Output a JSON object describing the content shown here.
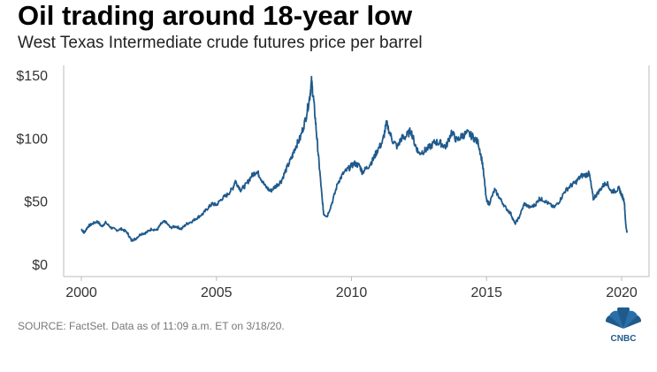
{
  "header": {
    "title": "Oil trading around 18-year low",
    "subtitle": "West Texas Intermediate crude futures price per barrel"
  },
  "footer": {
    "source": "SOURCE: FactSet. Data as of 11:09 a.m. ET on 3/18/20.",
    "logo_text": "CNBC"
  },
  "colors": {
    "line": "#1f5a8c",
    "axis": "#bbbbbb",
    "text": "#333333"
  },
  "chart_data": {
    "type": "line",
    "title": "Oil trading around 18-year low",
    "subtitle": "West Texas Intermediate crude futures price per barrel",
    "xlabel": "",
    "ylabel": "",
    "xlim": [
      2000,
      2020.25
    ],
    "ylim": [
      0,
      150
    ],
    "grid": false,
    "x_ticks": [
      2000,
      2005,
      2010,
      2015,
      2020
    ],
    "x_tick_labels": [
      "2000",
      "2005",
      "2010",
      "2015",
      "2020"
    ],
    "y_ticks": [
      0,
      50,
      100,
      150
    ],
    "y_tick_labels": [
      "$0",
      "$50",
      "$100",
      "$150"
    ],
    "series": [
      {
        "x": [
          2000.0,
          2000.1,
          2000.25,
          2000.4,
          2000.6,
          2000.75,
          2000.9,
          2001.1,
          2001.3,
          2001.5,
          2001.7,
          2001.85,
          2002.0,
          2002.2,
          2002.4,
          2002.6,
          2002.8,
          2002.95,
          2003.1,
          2003.3,
          2003.5,
          2003.7,
          2003.9,
          2004.1,
          2004.3,
          2004.5,
          2004.7,
          2004.85,
          2005.0,
          2005.2,
          2005.4,
          2005.6,
          2005.7,
          2005.9,
          2006.1,
          2006.3,
          2006.5,
          2006.6,
          2006.8,
          2007.0,
          2007.2,
          2007.4,
          2007.6,
          2007.8,
          2007.9,
          2008.1,
          2008.3,
          2008.45,
          2008.52,
          2008.6,
          2008.7,
          2008.8,
          2008.9,
          2008.97,
          2009.1,
          2009.3,
          2009.5,
          2009.7,
          2009.9,
          2010.1,
          2010.3,
          2010.4,
          2010.6,
          2010.8,
          2010.95,
          2011.15,
          2011.3,
          2011.5,
          2011.7,
          2011.85,
          2012.0,
          2012.2,
          2012.35,
          2012.5,
          2012.7,
          2012.9,
          2013.1,
          2013.3,
          2013.5,
          2013.7,
          2013.9,
          2014.1,
          2014.3,
          2014.5,
          2014.7,
          2014.85,
          2015.0,
          2015.1,
          2015.3,
          2015.5,
          2015.7,
          2015.9,
          2016.05,
          2016.2,
          2016.4,
          2016.6,
          2016.8,
          2016.95,
          2017.1,
          2017.3,
          2017.5,
          2017.7,
          2017.9,
          2018.1,
          2018.3,
          2018.5,
          2018.7,
          2018.8,
          2018.95,
          2019.1,
          2019.3,
          2019.45,
          2019.6,
          2019.75,
          2019.9,
          2020.0,
          2020.1,
          2020.15,
          2020.2
        ],
        "values": [
          28,
          25,
          30,
          32,
          34,
          30,
          33,
          29,
          27,
          28,
          25,
          19,
          20,
          24,
          25,
          28,
          27,
          32,
          34,
          29,
          30,
          28,
          32,
          34,
          37,
          40,
          45,
          48,
          47,
          52,
          55,
          60,
          66,
          59,
          63,
          70,
          74,
          70,
          62,
          58,
          62,
          66,
          76,
          85,
          92,
          100,
          115,
          132,
          145,
          130,
          105,
          80,
          55,
          40,
          38,
          50,
          65,
          72,
          76,
          80,
          78,
          73,
          77,
          83,
          90,
          97,
          112,
          99,
          93,
          100,
          101,
          106,
          95,
          88,
          90,
          93,
          97,
          96,
          93,
          105,
          98,
          102,
          104,
          101,
          96,
          80,
          50,
          48,
          59,
          52,
          45,
          40,
          32,
          37,
          48,
          45,
          47,
          52,
          51,
          48,
          45,
          50,
          58,
          62,
          65,
          70,
          71,
          72,
          52,
          56,
          62,
          65,
          58,
          58,
          60,
          55,
          50,
          32,
          25
        ]
      }
    ]
  }
}
